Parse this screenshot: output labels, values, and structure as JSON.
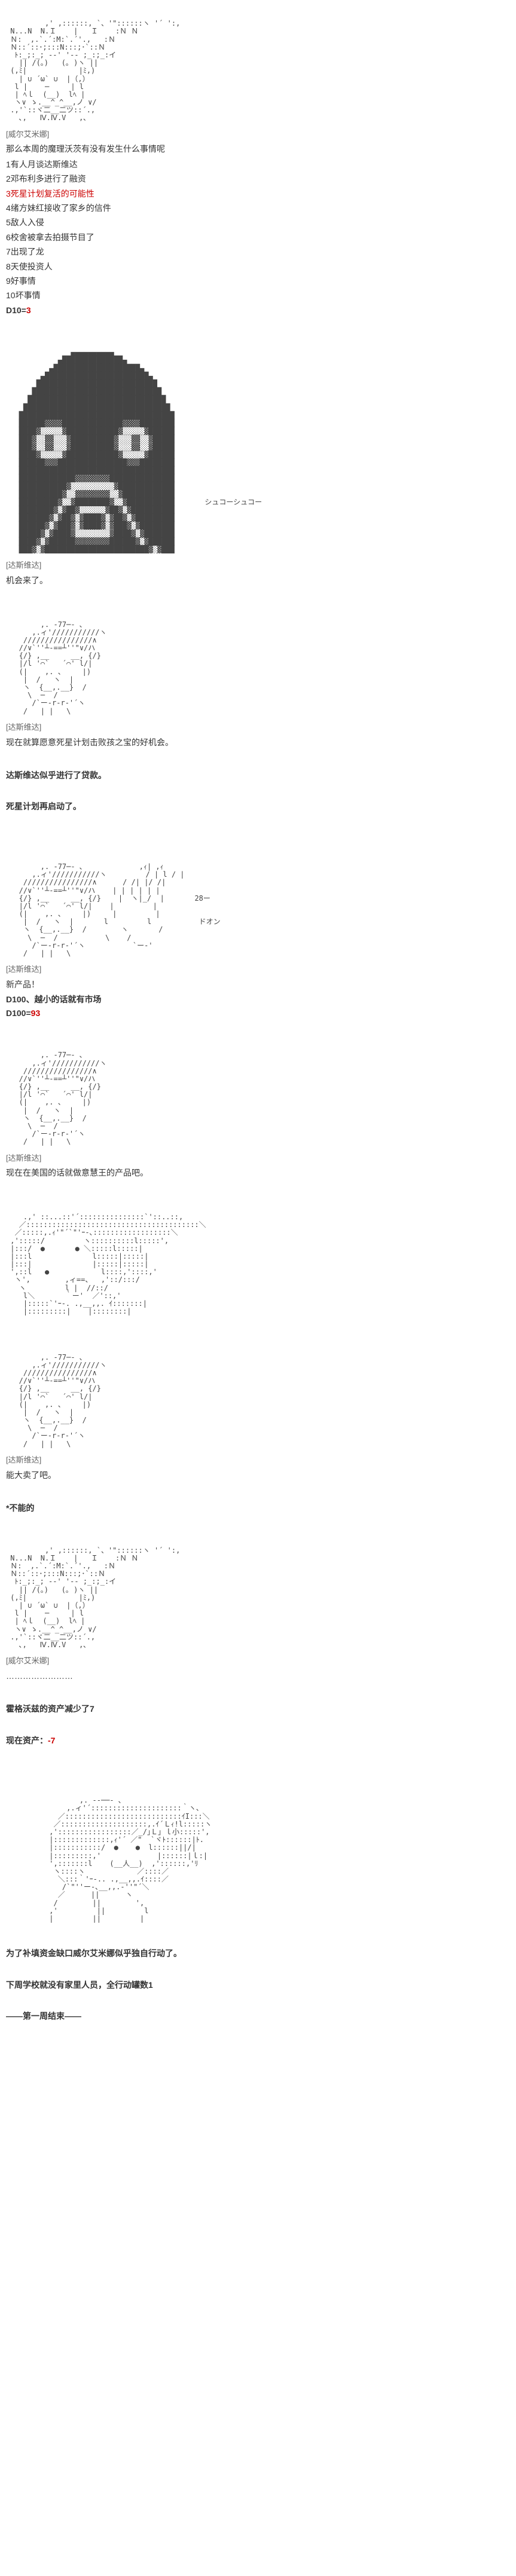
{
  "block1": {
    "speaker": "[威尔艾米娜]",
    "dialogue": "那么本周的魔理沃茨有没有发生什么事情呢",
    "options": [
      "1有人月谈达斯维达",
      "2邓布利多进行了融资",
      "3死星计划复活的可能性",
      "4绪方妹红接收了家乡的信件",
      "5敌人入侵",
      "6校舍被拿去拍摄节目了",
      "7出现了龙",
      "8天使投资人",
      "9好事情",
      "10坏事情"
    ],
    "highlighted_option": 2,
    "roll": "D10=3",
    "roll_value": "3"
  },
  "block2": {
    "speaker": "[达斯维达]",
    "dialogue": "机会来了。",
    "sound": "シュコーシュコー"
  },
  "block3": {
    "speaker": "[达斯维达]",
    "dialogue": "现在就算愿意死星计划击败孩之宝的好机会。"
  },
  "narration1": "达斯维达似乎进行了贷款。",
  "narration2": "死星计划再启动了。",
  "block4": {
    "speaker": "[达斯维达]",
    "dialogue": "新产品！",
    "roll_label": "D100、越小的话就有市场",
    "roll": "D100=",
    "roll_value": "93",
    "sounds": [
      "28ー",
      "ドオン"
    ]
  },
  "block5": {
    "speaker": "[达斯维达]",
    "dialogue": "现在在美国的话就做意慧王的产品吧。"
  },
  "block6": {
    "speaker": "[达斯维达]",
    "dialogue": "能大卖了吧。"
  },
  "narration3": "*不能的",
  "block7": {
    "speaker": "[威尔艾米娜]",
    "dialogue": "……………………"
  },
  "narration4": "霍格沃兹的资产减少了7",
  "asset_label": "现在资产：",
  "asset_value": "-7",
  "narration5": "为了补填资金缺口威尔艾米娜似乎独自行动了。",
  "narration6": "下周学校就没有家里人员，全行动罐数1",
  "narration7": "——第一周结束——"
}
